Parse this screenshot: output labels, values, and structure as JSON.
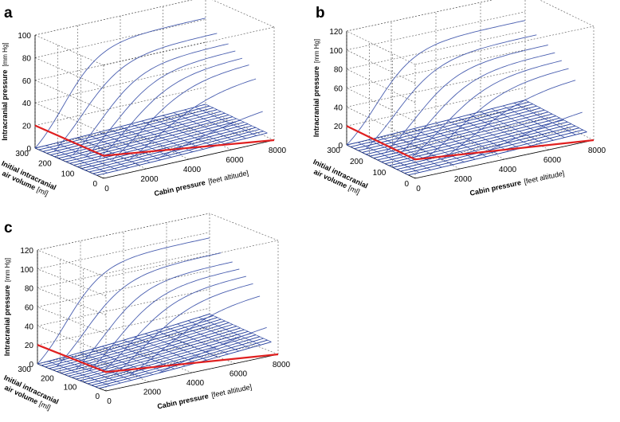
{
  "figure": {
    "panels": [
      {
        "letter": "a"
      },
      {
        "letter": "b"
      },
      {
        "letter": "c"
      }
    ]
  },
  "colors": {
    "curve": "#4a5fb0",
    "wire": "#1f3a9a",
    "threshold": "#e02020",
    "grid": "#555555",
    "axis": "#000000"
  },
  "chart_data": [
    {
      "panel": "a",
      "type": "line",
      "subtype": "3d-surface-lines",
      "xlabel": "Cabin pressure",
      "xlabel_unit": "[feet altitude]",
      "ylabel_line1": "Initial intracranial",
      "ylabel_line2": "air volume",
      "ylabel_unit": "[ml]",
      "zlabel": "Intracranial pressure",
      "zlabel_unit": "[mm Hg]",
      "xlim": [
        0,
        8000
      ],
      "ylim": [
        0,
        300
      ],
      "zlim": [
        0,
        100
      ],
      "xticks": [
        0,
        2000,
        4000,
        6000,
        8000
      ],
      "yticks": [
        0,
        100,
        200,
        300
      ],
      "zticks": [
        0,
        20,
        40,
        60,
        80,
        100
      ],
      "threshold": 20,
      "curve_volumes": [
        300,
        250,
        200,
        170,
        140,
        110,
        80,
        50
      ],
      "curve_onsets": [
        0,
        350,
        700,
        1000,
        1300,
        1600,
        2000,
        3000
      ],
      "curve_finals": [
        100,
        92,
        86,
        83,
        80,
        78,
        70,
        40
      ],
      "curve_rates": [
        9,
        8,
        8,
        7.5,
        7,
        6.5,
        5.5,
        4
      ],
      "wire_count": 17,
      "wire_max": 5
    },
    {
      "panel": "b",
      "type": "line",
      "subtype": "3d-surface-lines",
      "xlabel": "Cabin pressure",
      "xlabel_unit": "[feet altitude]",
      "ylabel_line1": "Initial intracranial",
      "ylabel_line2": "air volume",
      "ylabel_unit": "[ml]",
      "zlabel": "Intracranial pressure",
      "zlabel_unit": "[mm Hg]",
      "xlim": [
        0,
        8000
      ],
      "ylim": [
        0,
        300
      ],
      "zlim": [
        0,
        120
      ],
      "xticks": [
        0,
        2000,
        4000,
        6000,
        8000
      ],
      "yticks": [
        0,
        100,
        200,
        300
      ],
      "zticks": [
        0,
        20,
        40,
        60,
        80,
        100,
        120
      ],
      "threshold": 20,
      "curve_volumes": [
        300,
        250,
        200,
        170,
        140,
        110,
        80,
        50
      ],
      "curve_onsets": [
        0,
        350,
        700,
        1000,
        1300,
        1600,
        2000,
        3000
      ],
      "curve_finals": [
        112,
        104,
        98,
        94,
        90,
        86,
        80,
        45
      ],
      "curve_rates": [
        9,
        8,
        8,
        7.5,
        7,
        6.5,
        5.5,
        4
      ],
      "wire_count": 17,
      "wire_max": 7
    },
    {
      "panel": "c",
      "type": "line",
      "subtype": "3d-surface-lines",
      "xlabel": "Cabin pressure",
      "xlabel_unit": "[feet altitude]",
      "ylabel_line1": "Initial intracranial",
      "ylabel_line2": "air volume",
      "ylabel_unit": "[ml]",
      "zlabel": "Intracranial pressure",
      "zlabel_unit": "[mm Hg]",
      "xlim": [
        0,
        8000
      ],
      "ylim": [
        0,
        300
      ],
      "zlim": [
        0,
        120
      ],
      "xticks": [
        0,
        2000,
        4000,
        6000,
        8000
      ],
      "yticks": [
        0,
        100,
        200,
        300
      ],
      "zticks": [
        0,
        20,
        40,
        60,
        80,
        100,
        120
      ],
      "threshold": 20,
      "curve_volumes": [
        300,
        250,
        200,
        170,
        140,
        110,
        80,
        50
      ],
      "curve_onsets": [
        0,
        350,
        700,
        1000,
        1300,
        1600,
        2000,
        3000
      ],
      "curve_finals": [
        116,
        106,
        100,
        96,
        92,
        88,
        80,
        45
      ],
      "curve_rates": [
        9,
        8,
        8,
        7.5,
        7,
        6.5,
        5.5,
        4
      ],
      "wire_count": 17,
      "wire_max": 14
    }
  ]
}
